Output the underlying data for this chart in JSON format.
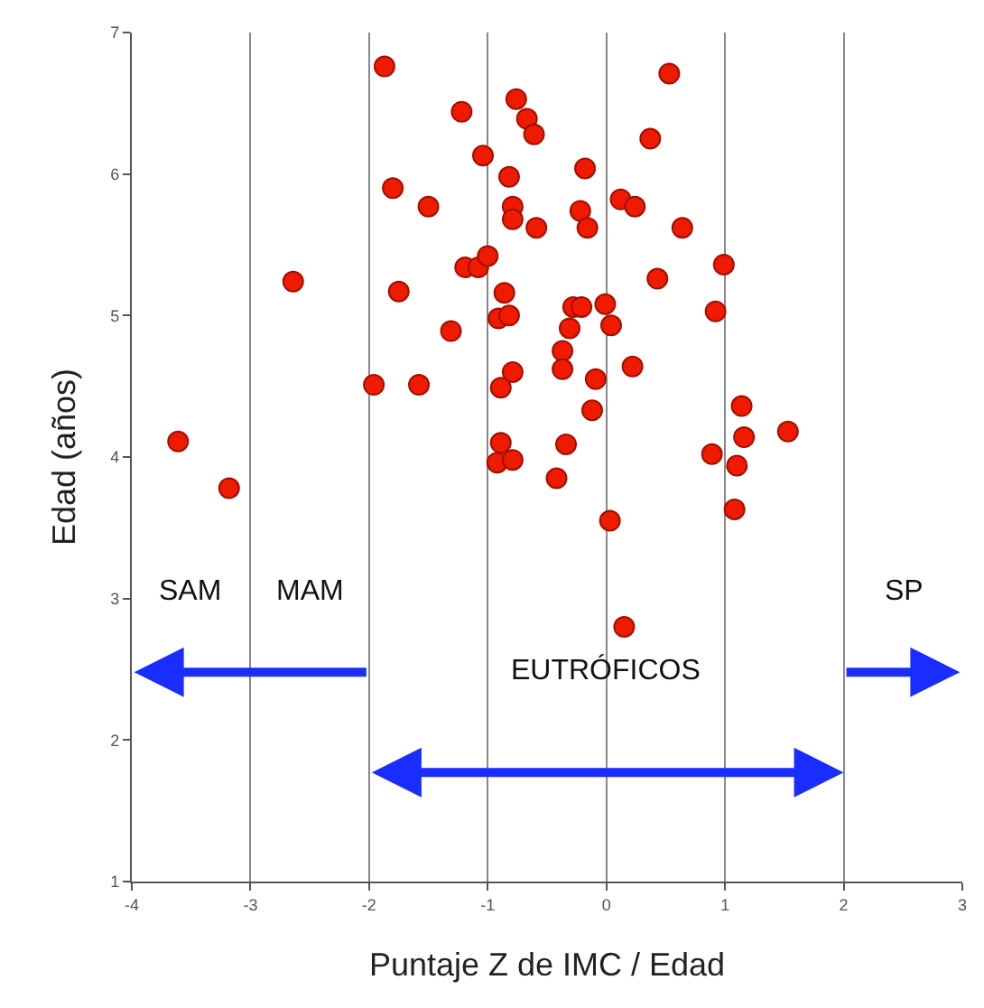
{
  "chart_data": {
    "type": "scatter",
    "xlabel": "Puntaje Z de IMC / Edad",
    "ylabel": "Edad (años)",
    "xlim": [
      -4,
      3
    ],
    "ylim": [
      1,
      7
    ],
    "xticks": [
      -4,
      -3,
      -2,
      -1,
      0,
      1,
      2,
      3
    ],
    "yticks": [
      1,
      2,
      3,
      4,
      5,
      6,
      7
    ],
    "grid": "x",
    "marker": "circle",
    "x": [
      -3.61,
      -3.18,
      -2.64,
      -1.96,
      -1.58,
      -1.87,
      -1.8,
      -1.75,
      -1.5,
      -1.31,
      -1.22,
      -1.19,
      -1.08,
      -1.04,
      -1.0,
      -0.91,
      -0.86,
      -0.82,
      -0.82,
      -0.79,
      -0.79,
      -0.79,
      -0.89,
      -0.89,
      -0.92,
      -0.79,
      -0.76,
      -0.67,
      -0.61,
      -0.59,
      -0.42,
      -0.37,
      -0.37,
      -0.34,
      -0.31,
      -0.28,
      -0.22,
      -0.21,
      -0.18,
      -0.16,
      -0.12,
      -0.09,
      -0.01,
      0.03,
      0.04,
      0.12,
      0.15,
      0.22,
      0.24,
      0.37,
      0.43,
      0.53,
      0.64,
      0.89,
      0.92,
      0.99,
      1.08,
      1.1,
      1.14,
      1.16,
      1.53
    ],
    "values": [
      4.11,
      3.78,
      5.24,
      4.51,
      4.51,
      6.76,
      5.9,
      5.17,
      5.77,
      4.89,
      6.44,
      5.34,
      5.34,
      6.13,
      5.42,
      4.98,
      5.16,
      5.0,
      5.98,
      5.77,
      5.68,
      4.6,
      4.49,
      4.1,
      3.96,
      3.98,
      6.53,
      6.39,
      6.28,
      5.62,
      3.85,
      4.75,
      4.62,
      4.09,
      4.91,
      5.06,
      5.74,
      5.06,
      6.04,
      5.62,
      4.33,
      4.55,
      5.08,
      3.55,
      4.93,
      5.82,
      2.8,
      4.64,
      5.77,
      6.25,
      5.26,
      6.71,
      5.62,
      4.02,
      5.03,
      5.36,
      3.63,
      3.94,
      4.36,
      4.14,
      4.18
    ],
    "color": "#f01a00",
    "annotations": [
      "SAM",
      "MAM",
      "SP",
      "EUTRÓFICOS"
    ]
  }
}
